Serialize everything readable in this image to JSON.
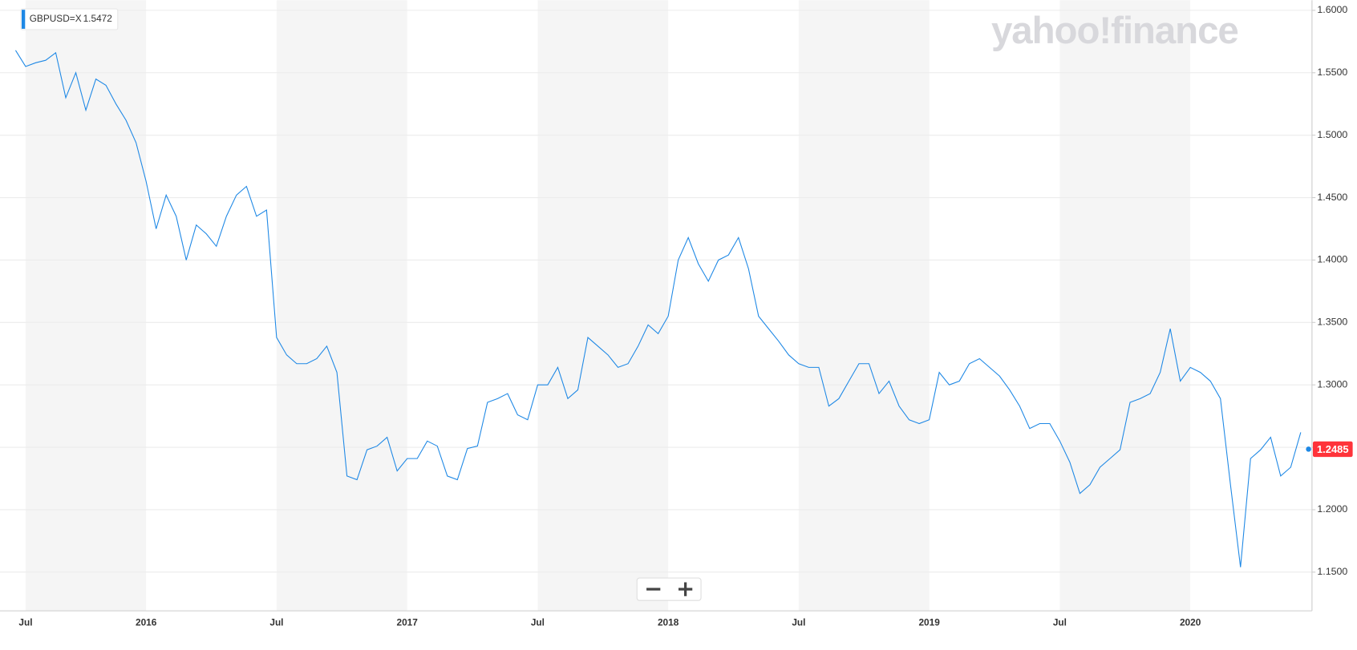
{
  "chart_data": {
    "type": "line",
    "watermark": "yahoo!finance",
    "categories": [
      null,
      "Jul",
      null,
      null,
      null,
      null,
      null,
      null,
      null,
      null,
      null,
      null,
      null,
      "2016",
      null,
      null,
      null,
      null,
      null,
      null,
      null,
      null,
      null,
      null,
      null,
      null,
      "Jul",
      null,
      null,
      null,
      null,
      null,
      null,
      null,
      null,
      null,
      null,
      null,
      null,
      "2017",
      null,
      null,
      null,
      null,
      null,
      null,
      null,
      null,
      null,
      null,
      null,
      null,
      "Jul",
      null,
      null,
      null,
      null,
      null,
      null,
      null,
      null,
      null,
      null,
      null,
      null,
      "2018",
      null,
      null,
      null,
      null,
      null,
      null,
      null,
      null,
      null,
      null,
      null,
      null,
      "Jul",
      null,
      null,
      null,
      null,
      null,
      null,
      null,
      null,
      null,
      null,
      null,
      null,
      "2019",
      null,
      null,
      null,
      null,
      null,
      null,
      null,
      null,
      null,
      null,
      null,
      null,
      "Jul",
      null,
      null,
      null,
      null,
      null,
      null,
      null,
      null,
      null,
      null,
      null,
      null,
      "2020",
      null,
      null,
      null,
      null,
      null,
      null,
      null,
      null,
      null,
      null,
      null
    ],
    "series": [
      {
        "name": "GBPUSD=X",
        "legend_value": {
          "value": 1.5472,
          "label": "1.5472"
        },
        "color": "#1e88e5",
        "values": [
          1.568,
          1.555,
          1.558,
          1.56,
          1.566,
          1.53,
          1.55,
          1.52,
          1.545,
          1.54,
          1.525,
          1.512,
          1.494,
          1.463,
          1.425,
          1.452,
          1.435,
          1.4,
          1.428,
          1.421,
          1.411,
          1.435,
          1.452,
          1.459,
          1.435,
          1.44,
          1.338,
          1.324,
          1.317,
          1.317,
          1.321,
          1.331,
          1.31,
          1.227,
          1.224,
          1.248,
          1.251,
          1.258,
          1.231,
          1.241,
          1.241,
          1.255,
          1.251,
          1.227,
          1.224,
          1.249,
          1.251,
          1.286,
          1.289,
          1.293,
          1.276,
          1.272,
          1.3,
          1.3,
          1.314,
          1.289,
          1.296,
          1.338,
          1.331,
          1.324,
          1.314,
          1.317,
          1.331,
          1.348,
          1.341,
          1.355,
          1.4,
          1.418,
          1.397,
          1.383,
          1.4,
          1.404,
          1.418,
          1.393,
          1.355,
          1.345,
          1.335,
          1.324,
          1.317,
          1.314,
          1.314,
          1.283,
          1.289,
          1.303,
          1.317,
          1.317,
          1.293,
          1.303,
          1.283,
          1.272,
          1.269,
          1.272,
          1.31,
          1.3,
          1.303,
          1.317,
          1.321,
          1.314,
          1.307,
          1.296,
          1.283,
          1.265,
          1.269,
          1.269,
          1.255,
          1.238,
          1.213,
          1.22,
          1.234,
          1.241,
          1.248,
          1.286,
          1.289,
          1.293,
          1.31,
          1.345,
          1.303,
          1.314,
          1.31,
          1.303,
          1.289,
          1.22,
          1.154,
          1.241,
          1.248,
          1.258,
          1.227,
          1.234,
          1.262
        ]
      }
    ],
    "current": {
      "value": 1.2485,
      "label": "1.2485"
    },
    "ylim": [
      1.119,
      1.606
    ],
    "yticks": [
      {
        "value": 1.15,
        "label": "1.1500"
      },
      {
        "value": 1.2,
        "label": "1.2000"
      },
      {
        "value": 1.25,
        "label": "1.2500"
      },
      {
        "value": 1.3,
        "label": "1.3000"
      },
      {
        "value": 1.35,
        "label": "1.3500"
      },
      {
        "value": 1.4,
        "label": "1.4000"
      },
      {
        "value": 1.45,
        "label": "1.4500"
      },
      {
        "value": 1.5,
        "label": "1.5000"
      },
      {
        "value": 1.55,
        "label": "1.5500"
      },
      {
        "value": 1.6,
        "label": "1.6000"
      }
    ],
    "grid": true
  }
}
